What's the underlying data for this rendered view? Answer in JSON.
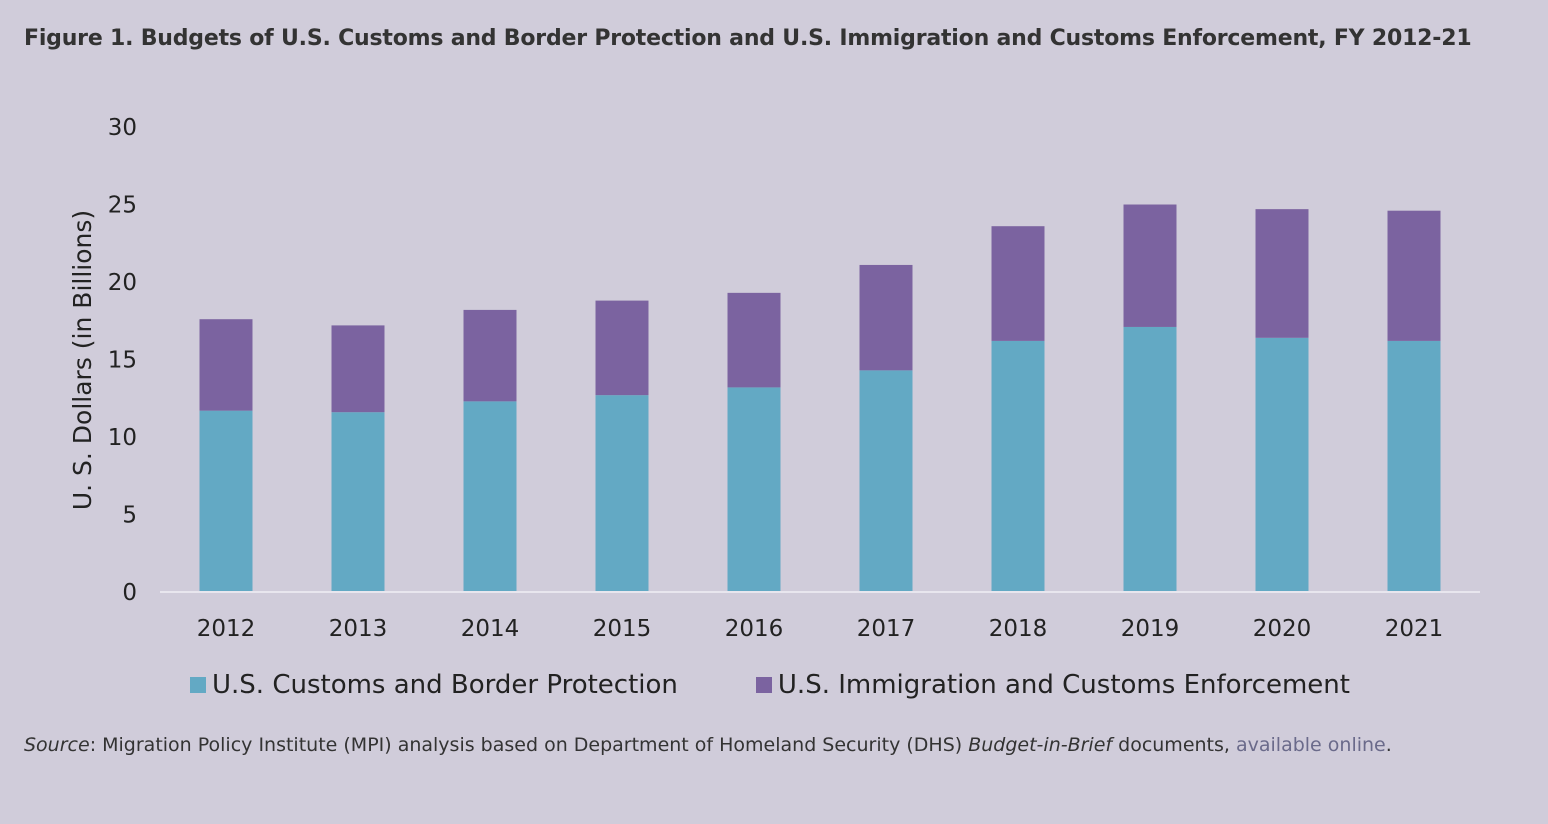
{
  "title": "Figure 1. Budgets of U.S. Customs and Border Protection and U.S. Immigration and Customs Enforcement, FY 2012-21",
  "source": {
    "label": "Source",
    "text_1": ": Migration Policy Institute (MPI) analysis based on Department of Homeland Security (DHS) ",
    "emphasis": "Budget-in-Brief",
    "text_2": " documents, ",
    "link": "available online",
    "end": "."
  },
  "colors": {
    "background": "#d0ccda",
    "cbp": "#63a9c4",
    "ice": "#7b63a0"
  },
  "chart_data": {
    "type": "bar",
    "stacked": true,
    "categories": [
      "2012",
      "2013",
      "2014",
      "2015",
      "2016",
      "2017",
      "2018",
      "2019",
      "2020",
      "2021"
    ],
    "series": [
      {
        "name": "U.S. Customs and Border Protection",
        "values": [
          11.7,
          11.6,
          12.3,
          12.7,
          13.2,
          14.3,
          16.2,
          17.1,
          16.4,
          16.2
        ]
      },
      {
        "name": "U.S. Immigration and Customs Enforcement",
        "values": [
          5.9,
          5.6,
          5.9,
          6.1,
          6.1,
          6.8,
          7.4,
          7.9,
          8.3,
          8.4
        ]
      }
    ],
    "ylabel": "U. S. Dollars (in Billions)",
    "xlabel": "",
    "ylim": [
      0,
      30
    ],
    "yticks": [
      "0",
      "5",
      "10",
      "15",
      "20",
      "25",
      "30"
    ],
    "grid": false,
    "legend": "bottom"
  }
}
